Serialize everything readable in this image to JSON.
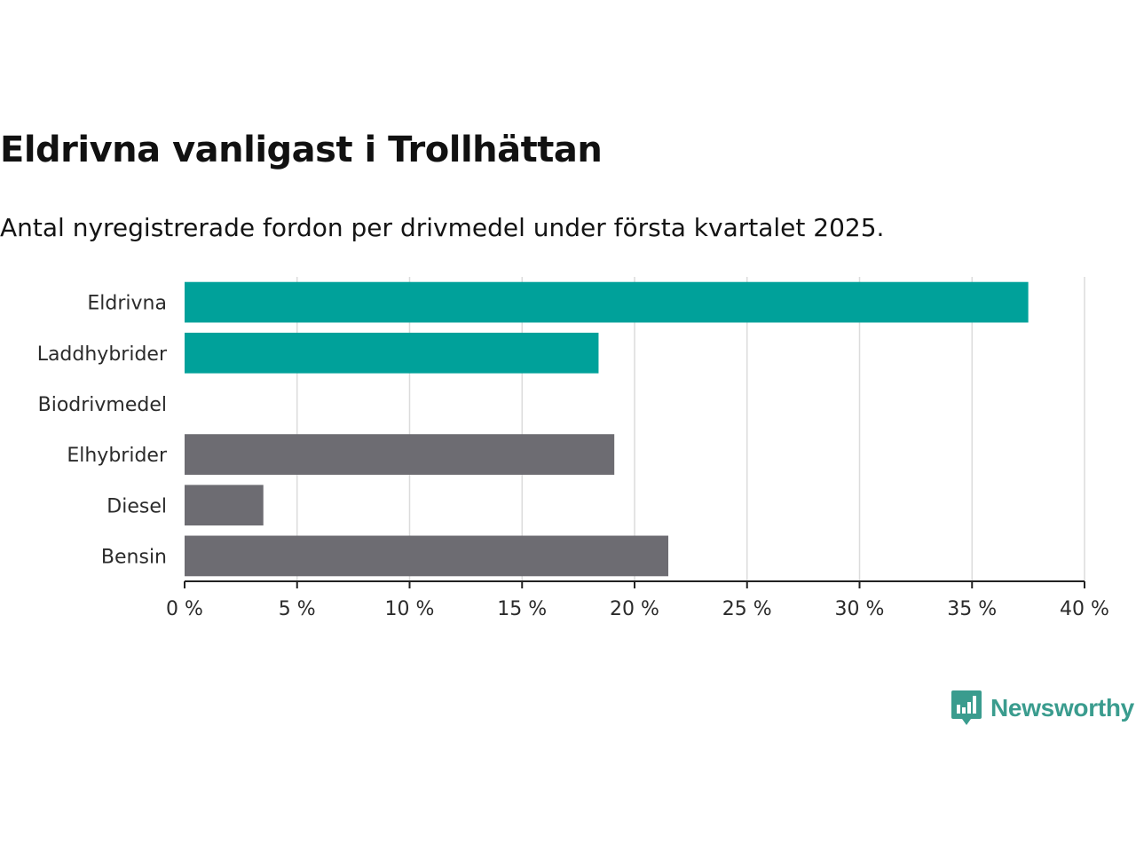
{
  "title": "Eldrivna vanligast i Trollhättan",
  "subtitle": "Antal nyregistrerade fordon per drivmedel under första kvartalet 2025.",
  "brand": {
    "name": "Newsworthy",
    "color": "#3a9c8e",
    "icon": "newsworthy-chart-bubble-icon"
  },
  "colors": {
    "highlight": "#00a19a",
    "default": "#6d6c72",
    "grid": "#dcdcdc",
    "axis": "#222222"
  },
  "chart_data": {
    "type": "bar",
    "orientation": "horizontal",
    "categories": [
      "Eldrivna",
      "Laddhybrider",
      "Biodrivmedel",
      "Elhybrider",
      "Diesel",
      "Bensin"
    ],
    "values": [
      37.5,
      18.4,
      0,
      19.1,
      3.5,
      21.5
    ],
    "highlighted": [
      true,
      true,
      true,
      false,
      false,
      false
    ],
    "xlim": [
      0,
      40
    ],
    "xticks": [
      0,
      5,
      10,
      15,
      20,
      25,
      30,
      35,
      40
    ],
    "xtick_labels": [
      "0 %",
      "5 %",
      "10 %",
      "15 %",
      "20 %",
      "25 %",
      "30 %",
      "35 %",
      "40 %"
    ],
    "grid": "vertical",
    "xlabel": "",
    "ylabel": ""
  }
}
